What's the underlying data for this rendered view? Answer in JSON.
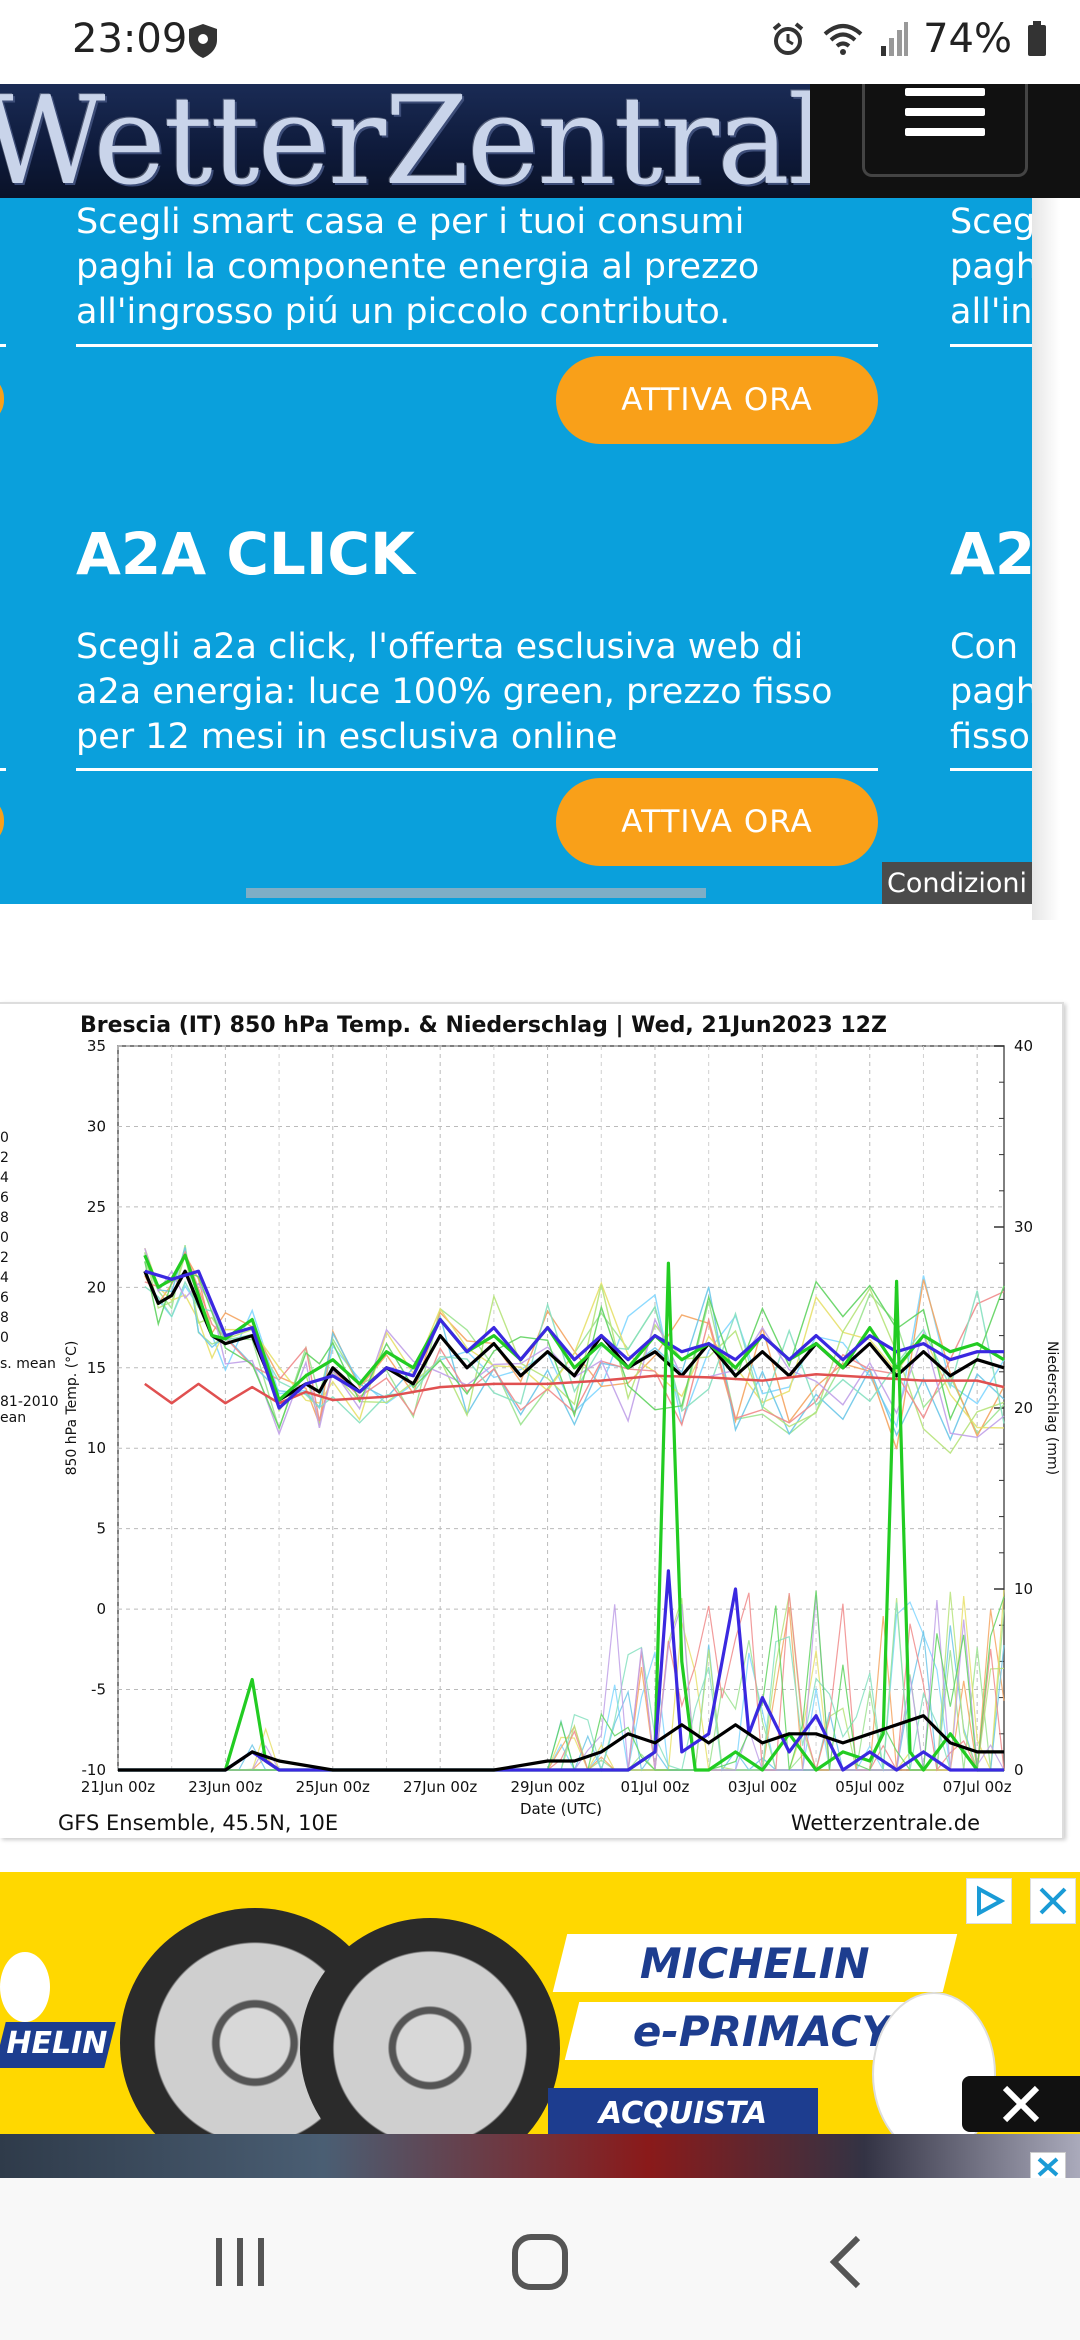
{
  "status_bar": {
    "time": "23:09",
    "battery": "74%",
    "icons": [
      "shield-icon",
      "alarm-icon",
      "wifi-icon",
      "signal-icon",
      "battery-icon"
    ]
  },
  "header": {
    "logo_text": "WetterZentrale",
    "menu_icon": "hamburger-menu-icon"
  },
  "ad_carousel": {
    "slides": [
      {
        "description": [
          "Scegli smart casa e per i tuoi consumi",
          "paghi la componente energia al prezzo",
          "all'ingrosso piú un piccolo contributo."
        ],
        "cta": "ATTIVA ORA"
      },
      {
        "title": "A2A CLICK",
        "description": [
          "Scegli a2a click, l'offerta esclusiva web di",
          "a2a energia: luce 100% green, prezzo fisso",
          "per 12 mesi in esclusiva online"
        ],
        "cta": "ATTIVA ORA"
      }
    ],
    "next_slide": {
      "top_lines": [
        "Sceg",
        "pagh",
        "all'in"
      ],
      "title": "A2",
      "lines": [
        "Con",
        "pagh",
        "fisso"
      ]
    },
    "conditions_label": "Condizioni",
    "background_color": "#0aa0dc",
    "cta_color": "#f9a019"
  },
  "chart": {
    "left_legend_fragments": [
      "0",
      "2",
      "4",
      "6",
      "8",
      "0",
      "2",
      "4",
      "6",
      "8",
      "0",
      "s. mean",
      "81-2010",
      "ean"
    ],
    "footer_left": "GFS Ensemble, 45.5N, 10E",
    "footer_right": "Wetterzentrale.de"
  },
  "chart_data": {
    "type": "line",
    "title": "Brescia  (IT)  850 hPa Temp. & Niederschlag | Wed, 21Jun2023 12Z",
    "xlabel": "Date (UTC)",
    "ylabel": "850 hPa Temp. (°C)",
    "y2label": "Niederschlag (mm)",
    "x_tick_labels": [
      "21Jun 00z",
      "23Jun 00z",
      "25Jun 00z",
      "27Jun 00z",
      "29Jun 00z",
      "01Jul 00z",
      "03Jul 00z",
      "05Jul 00z",
      "07Jul 00z"
    ],
    "y_ticks": [
      35,
      30,
      25,
      20,
      15,
      10,
      5,
      0,
      -5,
      -10
    ],
    "y2_ticks": [
      40,
      30,
      20,
      10,
      0
    ],
    "ylim": [
      -10,
      35
    ],
    "y2lim": [
      0,
      40
    ],
    "x_range_days": [
      0,
      16.5
    ],
    "grid": true,
    "series": [
      {
        "role": "ensemble mean",
        "color": "#000000",
        "axis": "temp",
        "x": [
          0.5,
          0.75,
          1,
          1.25,
          1.5,
          1.75,
          2,
          2.5,
          3,
          3.5,
          3.75,
          4,
          4.5,
          5,
          5.5,
          6,
          6.5,
          7,
          7.5,
          8,
          8.5,
          9,
          9.5,
          10,
          10.5,
          11,
          11.5,
          12,
          12.5,
          13,
          13.5,
          14,
          14.5,
          15,
          15.5,
          16,
          16.5
        ],
        "y": [
          21,
          19,
          19.5,
          21,
          19,
          17,
          16.5,
          17,
          13,
          14,
          13.5,
          15,
          13.5,
          15,
          14,
          17,
          15,
          16.5,
          14.5,
          16,
          14.5,
          17,
          15,
          16,
          14.5,
          16.5,
          14.5,
          16,
          14.5,
          16.5,
          15,
          16.5,
          14.5,
          16,
          14.5,
          15.5,
          15
        ]
      },
      {
        "role": "climate mean 1981-2010",
        "color": "#e05050",
        "axis": "temp",
        "x": [
          0.5,
          1,
          1.5,
          2,
          2.5,
          3,
          3.5,
          4,
          5,
          6,
          7,
          8,
          9,
          10,
          11,
          12,
          13,
          14,
          15,
          16,
          16.5
        ],
        "y": [
          14,
          12.8,
          14,
          12.8,
          13.8,
          12.8,
          13.5,
          13,
          13.2,
          13.8,
          14,
          14,
          14.2,
          14.5,
          14.4,
          14.2,
          14.6,
          14.4,
          14.2,
          14.2,
          13.8
        ]
      },
      {
        "role": "operational run",
        "color": "#22cc22",
        "axis": "temp",
        "x": [
          0.5,
          0.75,
          1,
          1.25,
          1.5,
          1.75,
          2,
          2.5,
          3,
          3.5,
          4,
          4.5,
          5,
          5.5,
          6,
          6.5,
          7,
          7.5,
          8,
          8.5,
          9,
          9.5,
          10,
          10.5,
          11,
          11.5,
          12,
          12.5,
          13,
          13.5,
          14,
          14.5,
          15,
          15.5,
          16,
          16.5
        ],
        "y": [
          22,
          20,
          20.5,
          22,
          19.5,
          17,
          16.8,
          18,
          13,
          14.5,
          15.5,
          14,
          16,
          15,
          18,
          16,
          17,
          15.5,
          17.5,
          15,
          16.5,
          15,
          17,
          15.5,
          16.5,
          15,
          17,
          15.5,
          16.5,
          15,
          17.5,
          15,
          17,
          16,
          16.5,
          15.5
        ]
      },
      {
        "role": "control run",
        "color": "#3a28e0",
        "axis": "temp",
        "x": [
          0.5,
          1,
          1.5,
          2,
          2.5,
          3,
          3.5,
          4,
          4.5,
          5,
          5.5,
          6,
          6.5,
          7,
          7.5,
          8,
          8.5,
          9,
          9.5,
          10,
          10.5,
          11,
          11.5,
          12,
          12.5,
          13,
          13.5,
          14,
          14.5,
          15,
          15.5,
          16,
          16.5
        ],
        "y": [
          21,
          20.5,
          21,
          17,
          17.5,
          12.5,
          14,
          14.5,
          13.5,
          15,
          14.5,
          18,
          16,
          17.5,
          15.5,
          17.5,
          15.5,
          17,
          15.5,
          17,
          16,
          16.5,
          15.5,
          17,
          15.5,
          17,
          15.5,
          17,
          16,
          16.5,
          15.5,
          16,
          16
        ]
      },
      {
        "role": "operational precipitation",
        "color": "#22cc22",
        "axis": "precip",
        "x": [
          0,
          2,
          2.5,
          2.75,
          3,
          3.5,
          4,
          6,
          8,
          9,
          9.5,
          10,
          10.25,
          10.5,
          10.75,
          11,
          11.5,
          12,
          12.5,
          13,
          13.5,
          14,
          14.25,
          14.5,
          14.75,
          15,
          15.5,
          16,
          16.5
        ],
        "y": [
          0,
          0,
          5,
          0.5,
          0,
          0,
          0,
          0,
          0,
          0,
          0,
          1,
          28,
          6,
          0,
          0,
          1,
          0,
          2,
          0,
          1,
          0.5,
          2,
          27,
          1,
          0,
          2,
          0,
          0
        ]
      },
      {
        "role": "control precipitation",
        "color": "#3a28e0",
        "axis": "precip",
        "x": [
          0,
          2,
          2.5,
          3,
          4,
          8,
          9,
          9.5,
          10,
          10.25,
          10.5,
          11,
          11.5,
          11.75,
          12,
          12.5,
          13,
          13.5,
          14,
          14.5,
          15,
          15.5,
          16,
          16.5
        ],
        "y": [
          0,
          0,
          1,
          0,
          0,
          0,
          0,
          0,
          1,
          11,
          1,
          2,
          10,
          2,
          4,
          1,
          3,
          0,
          1,
          0,
          1,
          0,
          0,
          0
        ]
      },
      {
        "role": "mean precipitation",
        "color": "#000000",
        "axis": "precip",
        "x": [
          0,
          2,
          2.5,
          3,
          4,
          5,
          6,
          7,
          8,
          8.5,
          9,
          9.5,
          10,
          10.5,
          11,
          11.5,
          12,
          12.5,
          13,
          13.5,
          14,
          14.5,
          15,
          15.5,
          16,
          16.5
        ],
        "y": [
          0,
          0,
          1,
          0.5,
          0,
          0,
          0,
          0,
          0.5,
          0.5,
          1,
          2,
          1.5,
          2.5,
          1.5,
          2.5,
          1.5,
          2,
          2,
          1.5,
          2,
          2.5,
          3,
          1.5,
          1,
          1
        ]
      }
    ]
  },
  "bottom_ad": {
    "brand_lines": [
      "MICHELIN",
      "e-PRIMACY"
    ],
    "button": "ACQUISTA",
    "logo_fragment": "HELIN",
    "icons": [
      "adchoices-icon",
      "close-icon"
    ],
    "background_color": "#ffd800"
  },
  "nav_bar": {
    "icons": [
      "recent-apps-icon",
      "home-icon",
      "back-icon"
    ]
  }
}
